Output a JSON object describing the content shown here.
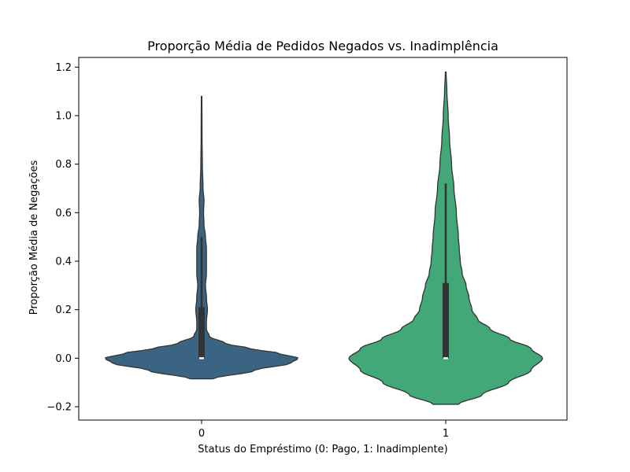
{
  "chart_data": {
    "type": "violin",
    "title": "Proporção Média de Pedidos Negados vs. Inadimplência",
    "xlabel": "Status do Empréstimo (0: Pago, 1: Inadimplente)",
    "ylabel": "Proporção Média de Negações",
    "categories": [
      "0",
      "1"
    ],
    "ylim": [
      -0.255,
      1.24
    ],
    "yticks": [
      -0.2,
      0.0,
      0.2,
      0.4,
      0.6,
      0.8,
      1.0,
      1.2
    ],
    "ytick_labels": [
      "−0.2",
      "0.0",
      "0.2",
      "0.4",
      "0.6",
      "0.8",
      "1.0",
      "1.2"
    ],
    "grid": false,
    "colors": {
      "0": "#3b6483",
      "1": "#42a877"
    },
    "violins": [
      {
        "category": "0",
        "min": 0.0,
        "q1": 0.0,
        "median": 0.0,
        "q3": 0.21,
        "whisker_low": 0.0,
        "whisker_high": 0.5,
        "kde_range": [
          -0.085,
          1.08
        ],
        "density_profile": [
          [
            -0.085,
            0.12
          ],
          [
            -0.05,
            0.55
          ],
          [
            -0.02,
            0.92
          ],
          [
            0.0,
            1.0
          ],
          [
            0.02,
            0.8
          ],
          [
            0.04,
            0.5
          ],
          [
            0.06,
            0.25
          ],
          [
            0.09,
            0.08
          ],
          [
            0.12,
            0.05
          ],
          [
            0.15,
            0.05
          ],
          [
            0.2,
            0.06
          ],
          [
            0.25,
            0.05
          ],
          [
            0.3,
            0.04
          ],
          [
            0.35,
            0.05
          ],
          [
            0.4,
            0.05
          ],
          [
            0.45,
            0.05
          ],
          [
            0.5,
            0.04
          ],
          [
            0.55,
            0.025
          ],
          [
            0.6,
            0.02
          ],
          [
            0.65,
            0.025
          ],
          [
            0.7,
            0.015
          ],
          [
            0.8,
            0.008
          ],
          [
            0.9,
            0.005
          ],
          [
            1.0,
            0.004
          ],
          [
            1.08,
            0.003
          ]
        ]
      },
      {
        "category": "1",
        "min": 0.0,
        "q1": 0.0,
        "median": 0.0,
        "q3": 0.31,
        "whisker_low": 0.0,
        "whisker_high": 0.72,
        "kde_range": [
          -0.19,
          1.18
        ],
        "density_profile": [
          [
            -0.19,
            0.13
          ],
          [
            -0.15,
            0.38
          ],
          [
            -0.1,
            0.65
          ],
          [
            -0.05,
            0.88
          ],
          [
            0.0,
            1.0
          ],
          [
            0.04,
            0.88
          ],
          [
            0.08,
            0.66
          ],
          [
            0.12,
            0.46
          ],
          [
            0.16,
            0.33
          ],
          [
            0.2,
            0.27
          ],
          [
            0.25,
            0.24
          ],
          [
            0.3,
            0.21
          ],
          [
            0.35,
            0.17
          ],
          [
            0.4,
            0.15
          ],
          [
            0.45,
            0.14
          ],
          [
            0.5,
            0.13
          ],
          [
            0.6,
            0.11
          ],
          [
            0.7,
            0.085
          ],
          [
            0.8,
            0.06
          ],
          [
            0.9,
            0.04
          ],
          [
            1.0,
            0.025
          ],
          [
            1.1,
            0.012
          ],
          [
            1.18,
            0.004
          ]
        ]
      }
    ]
  }
}
